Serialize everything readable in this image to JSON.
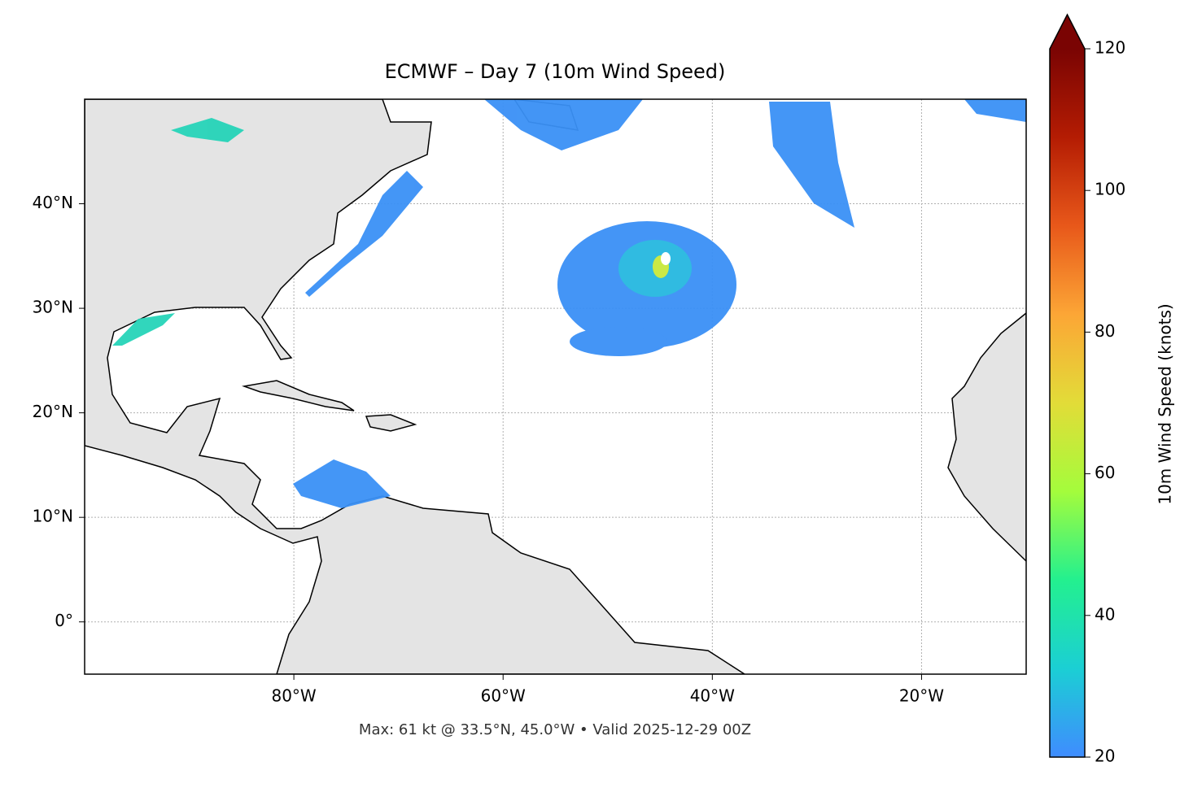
{
  "chart_data": {
    "type": "map",
    "title": "ECMWF – Day 7 (10m Wind Speed)",
    "footer": "Max: 61 kt @ 33.5°N, 45.0°W • Valid 2025-12-29 00Z",
    "xlim": [
      -100,
      -10
    ],
    "ylim": [
      -5,
      50
    ],
    "xticks": [
      {
        "value": -80,
        "label": "80°W"
      },
      {
        "value": -60,
        "label": "60°W"
      },
      {
        "value": -40,
        "label": "40°W"
      },
      {
        "value": -20,
        "label": "20°W"
      }
    ],
    "yticks": [
      {
        "value": 0,
        "label": "0°"
      },
      {
        "value": 10,
        "label": "10°N"
      },
      {
        "value": 20,
        "label": "20°N"
      },
      {
        "value": 30,
        "label": "30°N"
      },
      {
        "value": 40,
        "label": "40°N"
      }
    ],
    "grid": true,
    "colorbar": {
      "label": "10m Wind Speed (knots)",
      "lim": [
        20,
        120
      ],
      "ticks": [
        20,
        40,
        60,
        80,
        100,
        120
      ],
      "colors": [
        "#3f8cff",
        "#1bcfd4",
        "#23f08f",
        "#a4fc3c",
        "#e2dc38",
        "#fca636",
        "#e8581a",
        "#b41c03",
        "#7a0403"
      ],
      "extend": "max"
    }
  }
}
